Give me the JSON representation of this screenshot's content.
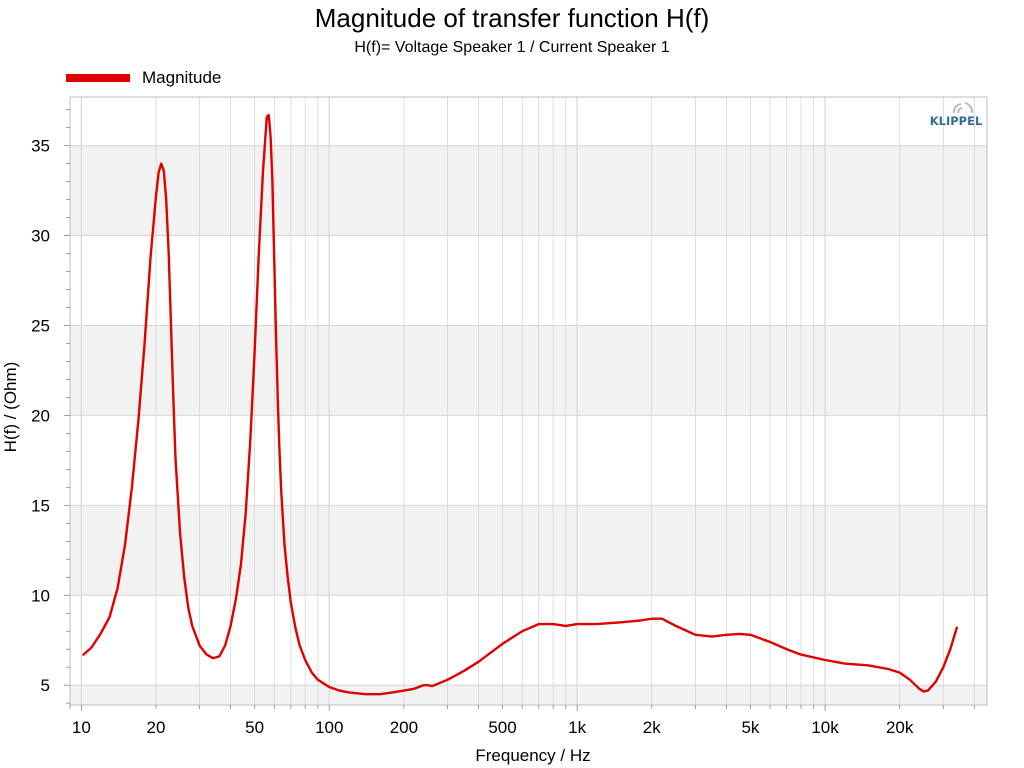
{
  "title": "Magnitude of transfer function H(f)",
  "subtitle": "H(f)= Voltage Speaker 1 / Current Speaker 1",
  "logo_text": "KLIPPEL",
  "colors": {
    "series": "#e00000",
    "band": "#f2f2f2",
    "grid": "#d6d6d6",
    "logo": "#2f6e9a"
  },
  "chart_data": {
    "type": "line",
    "xscale": "log",
    "xlim": [
      9,
      45000
    ],
    "ylim": [
      3.9,
      37.7
    ],
    "xlabel": "Frequency / Hz",
    "ylabel": "H(f) / (Ohm)",
    "grid": true,
    "legend_position": "top-left",
    "x_ticks": [
      {
        "v": 10,
        "label": "10"
      },
      {
        "v": 20,
        "label": "20"
      },
      {
        "v": 50,
        "label": "50"
      },
      {
        "v": 100,
        "label": "100"
      },
      {
        "v": 200,
        "label": "200"
      },
      {
        "v": 500,
        "label": "500"
      },
      {
        "v": 1000,
        "label": "1k"
      },
      {
        "v": 2000,
        "label": "2k"
      },
      {
        "v": 5000,
        "label": "5k"
      },
      {
        "v": 10000,
        "label": "10k"
      },
      {
        "v": 20000,
        "label": "20k"
      }
    ],
    "y_ticks": [
      {
        "v": 5,
        "label": "5"
      },
      {
        "v": 10,
        "label": "10"
      },
      {
        "v": 15,
        "label": "15"
      },
      {
        "v": 20,
        "label": "20"
      },
      {
        "v": 25,
        "label": "25"
      },
      {
        "v": 30,
        "label": "30"
      },
      {
        "v": 35,
        "label": "35"
      }
    ],
    "series": [
      {
        "name": "Magnitude",
        "x": [
          10.2,
          11,
          12,
          13,
          14,
          15,
          16,
          17,
          18,
          19,
          20,
          20.5,
          21,
          21.5,
          22,
          22.5,
          23,
          23.5,
          24,
          25,
          26,
          27,
          28,
          30,
          32,
          34,
          36,
          38,
          40,
          42,
          44,
          46,
          48,
          50,
          52,
          54,
          56,
          57,
          58,
          59,
          60,
          61,
          62,
          63,
          64,
          66,
          68,
          70,
          73,
          76,
          80,
          85,
          90,
          100,
          110,
          120,
          140,
          160,
          180,
          200,
          220,
          240,
          250,
          260,
          300,
          350,
          400,
          500,
          600,
          700,
          800,
          900,
          1000,
          1200,
          1500,
          1800,
          2000,
          2200,
          2500,
          3000,
          3500,
          4000,
          4500,
          5000,
          6000,
          7000,
          8000,
          10000,
          12000,
          15000,
          18000,
          20000,
          22000,
          24000,
          25000,
          26000,
          28000,
          30000,
          32000,
          34000
        ],
        "values": [
          6.7,
          7.1,
          7.9,
          8.8,
          10.4,
          12.8,
          16.0,
          19.8,
          24.0,
          28.7,
          32.2,
          33.5,
          34.0,
          33.6,
          32.0,
          29.0,
          25.0,
          21.0,
          17.5,
          13.5,
          11.0,
          9.3,
          8.3,
          7.2,
          6.7,
          6.5,
          6.6,
          7.2,
          8.3,
          9.8,
          11.7,
          14.5,
          18.5,
          23.5,
          29.0,
          33.5,
          36.6,
          36.7,
          35.5,
          33.0,
          28.5,
          24.5,
          20.8,
          18.0,
          15.8,
          12.8,
          11.0,
          9.6,
          8.2,
          7.2,
          6.4,
          5.7,
          5.3,
          4.9,
          4.7,
          4.6,
          4.5,
          4.5,
          4.6,
          4.7,
          4.8,
          5.0,
          5.0,
          4.95,
          5.3,
          5.8,
          6.3,
          7.3,
          8.0,
          8.4,
          8.4,
          8.3,
          8.4,
          8.4,
          8.5,
          8.6,
          8.7,
          8.7,
          8.3,
          7.8,
          7.7,
          7.8,
          7.85,
          7.8,
          7.4,
          7.0,
          6.7,
          6.4,
          6.2,
          6.1,
          5.9,
          5.7,
          5.3,
          4.8,
          4.65,
          4.7,
          5.2,
          6.0,
          7.0,
          8.2
        ]
      }
    ]
  }
}
